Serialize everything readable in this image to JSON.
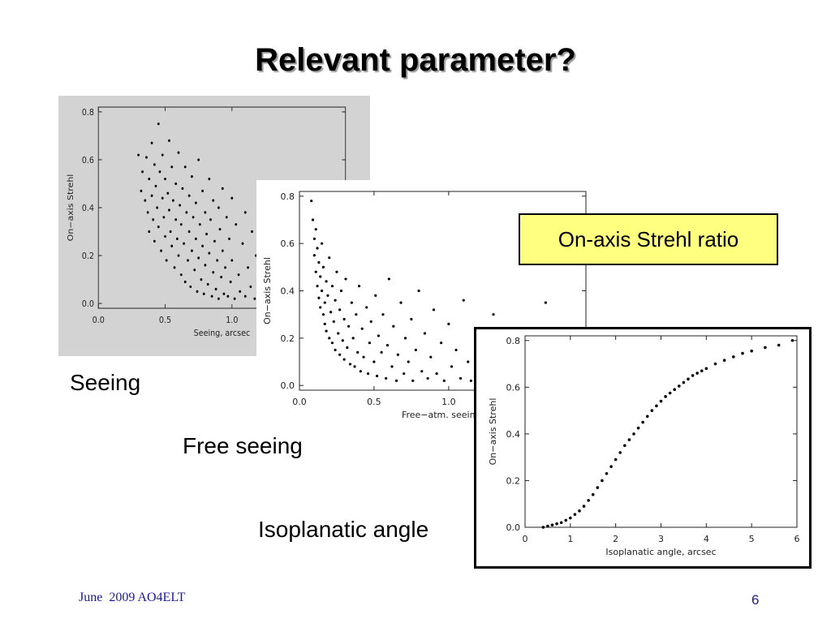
{
  "slide": {
    "title": "Relevant parameter?",
    "footer": "June  2009 AO4ELT",
    "page_number": "6",
    "callout": "On-axis Strehl ratio",
    "captions": {
      "seeing": "Seeing",
      "free_seeing": "Free seeing",
      "isoplanatic": "Isoplanatic angle"
    }
  },
  "chart_data": [
    {
      "id": "seeing",
      "type": "scatter",
      "title": "",
      "xlabel": "Seeing, arcsec",
      "ylabel": "On−axis Strehl",
      "xlim": [
        0.0,
        1.85
      ],
      "ylim": [
        -0.02,
        0.82
      ],
      "xticks": [
        "0.0",
        "0.5",
        "1.0"
      ],
      "xtick_values": [
        0.0,
        0.5,
        1.0
      ],
      "yticks": [
        "0.0",
        "0.2",
        "0.4",
        "0.6",
        "0.8"
      ],
      "ytick_values": [
        0.0,
        0.2,
        0.4,
        0.6,
        0.8
      ],
      "background": "#d3d3d3",
      "points": [
        [
          0.3,
          0.62
        ],
        [
          0.32,
          0.47
        ],
        [
          0.33,
          0.55
        ],
        [
          0.35,
          0.43
        ],
        [
          0.36,
          0.61
        ],
        [
          0.37,
          0.38
        ],
        [
          0.38,
          0.52
        ],
        [
          0.38,
          0.3
        ],
        [
          0.4,
          0.67
        ],
        [
          0.4,
          0.45
        ],
        [
          0.41,
          0.35
        ],
        [
          0.42,
          0.58
        ],
        [
          0.42,
          0.26
        ],
        [
          0.43,
          0.49
        ],
        [
          0.44,
          0.4
        ],
        [
          0.45,
          0.75
        ],
        [
          0.45,
          0.32
        ],
        [
          0.46,
          0.55
        ],
        [
          0.47,
          0.22
        ],
        [
          0.48,
          0.44
        ],
        [
          0.48,
          0.62
        ],
        [
          0.49,
          0.36
        ],
        [
          0.5,
          0.28
        ],
        [
          0.5,
          0.52
        ],
        [
          0.51,
          0.18
        ],
        [
          0.52,
          0.46
        ],
        [
          0.53,
          0.39
        ],
        [
          0.53,
          0.68
        ],
        [
          0.54,
          0.3
        ],
        [
          0.55,
          0.24
        ],
        [
          0.55,
          0.57
        ],
        [
          0.56,
          0.43
        ],
        [
          0.57,
          0.15
        ],
        [
          0.58,
          0.35
        ],
        [
          0.58,
          0.5
        ],
        [
          0.59,
          0.27
        ],
        [
          0.6,
          0.63
        ],
        [
          0.6,
          0.2
        ],
        [
          0.61,
          0.41
        ],
        [
          0.62,
          0.12
        ],
        [
          0.62,
          0.33
        ],
        [
          0.63,
          0.48
        ],
        [
          0.64,
          0.25
        ],
        [
          0.65,
          0.57
        ],
        [
          0.65,
          0.09
        ],
        [
          0.66,
          0.38
        ],
        [
          0.67,
          0.18
        ],
        [
          0.68,
          0.45
        ],
        [
          0.68,
          0.3
        ],
        [
          0.69,
          0.07
        ],
        [
          0.7,
          0.53
        ],
        [
          0.7,
          0.22
        ],
        [
          0.71,
          0.36
        ],
        [
          0.72,
          0.14
        ],
        [
          0.73,
          0.42
        ],
        [
          0.73,
          0.27
        ],
        [
          0.74,
          0.05
        ],
        [
          0.75,
          0.6
        ],
        [
          0.75,
          0.19
        ],
        [
          0.76,
          0.33
        ],
        [
          0.77,
          0.1
        ],
        [
          0.78,
          0.47
        ],
        [
          0.78,
          0.24
        ],
        [
          0.79,
          0.04
        ],
        [
          0.8,
          0.38
        ],
        [
          0.8,
          0.16
        ],
        [
          0.81,
          0.29
        ],
        [
          0.82,
          0.08
        ],
        [
          0.83,
          0.52
        ],
        [
          0.83,
          0.21
        ],
        [
          0.84,
          0.35
        ],
        [
          0.85,
          0.03
        ],
        [
          0.86,
          0.13
        ],
        [
          0.86,
          0.43
        ],
        [
          0.87,
          0.26
        ],
        [
          0.88,
          0.06
        ],
        [
          0.89,
          0.18
        ],
        [
          0.9,
          0.4
        ],
        [
          0.9,
          0.02
        ],
        [
          0.91,
          0.31
        ],
        [
          0.92,
          0.11
        ],
        [
          0.93,
          0.48
        ],
        [
          0.93,
          0.22
        ],
        [
          0.94,
          0.04
        ],
        [
          0.95,
          0.15
        ],
        [
          0.96,
          0.36
        ],
        [
          0.97,
          0.03
        ],
        [
          0.98,
          0.27
        ],
        [
          0.99,
          0.09
        ],
        [
          1.0,
          0.44
        ],
        [
          1.0,
          0.18
        ],
        [
          1.02,
          0.02
        ],
        [
          1.03,
          0.33
        ],
        [
          1.05,
          0.12
        ],
        [
          1.06,
          0.05
        ],
        [
          1.08,
          0.25
        ],
        [
          1.1,
          0.38
        ],
        [
          1.1,
          0.03
        ],
        [
          1.12,
          0.15
        ],
        [
          1.14,
          0.07
        ],
        [
          1.15,
          0.3
        ],
        [
          1.17,
          0.02
        ],
        [
          1.18,
          0.2
        ],
        [
          1.2,
          0.45
        ],
        [
          1.22,
          0.1
        ],
        [
          1.24,
          0.04
        ],
        [
          1.25,
          0.28
        ],
        [
          1.28,
          0.14
        ],
        [
          1.3,
          0.02
        ],
        [
          1.32,
          0.35
        ],
        [
          1.33,
          0.08
        ],
        [
          1.35,
          0.2
        ],
        [
          1.38,
          0.03
        ],
        [
          1.4,
          0.26
        ],
        [
          1.42,
          0.11
        ],
        [
          1.45,
          0.05
        ],
        [
          1.48,
          0.32
        ],
        [
          1.5,
          0.16
        ],
        [
          1.52,
          0.02
        ],
        [
          1.55,
          0.22
        ],
        [
          1.58,
          0.07
        ],
        [
          1.6,
          0.4
        ],
        [
          1.62,
          0.12
        ],
        [
          1.65,
          0.03
        ],
        [
          1.68,
          0.18
        ],
        [
          1.7,
          0.06
        ],
        [
          1.72,
          0.28
        ],
        [
          1.75,
          0.02
        ],
        [
          1.78,
          0.1
        ],
        [
          1.8,
          0.04
        ]
      ]
    },
    {
      "id": "free_seeing",
      "type": "scatter",
      "title": "",
      "xlabel": "Free−atm. seeing,",
      "ylabel": "On−axis Strehl",
      "xlim": [
        0.0,
        1.92
      ],
      "ylim": [
        -0.02,
        0.82
      ],
      "xticks": [
        "0.0",
        "0.5",
        "1.0"
      ],
      "xtick_values": [
        0.0,
        0.5,
        1.0
      ],
      "yticks": [
        "0.0",
        "0.2",
        "0.4",
        "0.6",
        "0.8"
      ],
      "ytick_values": [
        0.0,
        0.2,
        0.4,
        0.6,
        0.8
      ],
      "background": "#ffffff",
      "points": [
        [
          0.08,
          0.78
        ],
        [
          0.09,
          0.7
        ],
        [
          0.1,
          0.62
        ],
        [
          0.1,
          0.55
        ],
        [
          0.11,
          0.66
        ],
        [
          0.11,
          0.48
        ],
        [
          0.12,
          0.58
        ],
        [
          0.12,
          0.42
        ],
        [
          0.13,
          0.52
        ],
        [
          0.13,
          0.37
        ],
        [
          0.14,
          0.46
        ],
        [
          0.14,
          0.33
        ],
        [
          0.15,
          0.6
        ],
        [
          0.15,
          0.4
        ],
        [
          0.16,
          0.3
        ],
        [
          0.16,
          0.5
        ],
        [
          0.17,
          0.35
        ],
        [
          0.17,
          0.26
        ],
        [
          0.18,
          0.44
        ],
        [
          0.18,
          0.23
        ],
        [
          0.19,
          0.38
        ],
        [
          0.2,
          0.2
        ],
        [
          0.2,
          0.54
        ],
        [
          0.21,
          0.31
        ],
        [
          0.22,
          0.18
        ],
        [
          0.22,
          0.42
        ],
        [
          0.23,
          0.27
        ],
        [
          0.24,
          0.15
        ],
        [
          0.24,
          0.36
        ],
        [
          0.25,
          0.48
        ],
        [
          0.26,
          0.22
        ],
        [
          0.27,
          0.13
        ],
        [
          0.27,
          0.32
        ],
        [
          0.28,
          0.4
        ],
        [
          0.29,
          0.19
        ],
        [
          0.3,
          0.11
        ],
        [
          0.3,
          0.28
        ],
        [
          0.31,
          0.45
        ],
        [
          0.32,
          0.16
        ],
        [
          0.33,
          0.25
        ],
        [
          0.34,
          0.09
        ],
        [
          0.35,
          0.35
        ],
        [
          0.36,
          0.2
        ],
        [
          0.37,
          0.08
        ],
        [
          0.38,
          0.3
        ],
        [
          0.39,
          0.14
        ],
        [
          0.4,
          0.42
        ],
        [
          0.41,
          0.06
        ],
        [
          0.42,
          0.24
        ],
        [
          0.43,
          0.12
        ],
        [
          0.45,
          0.33
        ],
        [
          0.46,
          0.05
        ],
        [
          0.47,
          0.18
        ],
        [
          0.48,
          0.27
        ],
        [
          0.5,
          0.1
        ],
        [
          0.51,
          0.38
        ],
        [
          0.52,
          0.04
        ],
        [
          0.53,
          0.21
        ],
        [
          0.55,
          0.14
        ],
        [
          0.56,
          0.3
        ],
        [
          0.58,
          0.03
        ],
        [
          0.59,
          0.17
        ],
        [
          0.6,
          0.45
        ],
        [
          0.62,
          0.08
        ],
        [
          0.63,
          0.25
        ],
        [
          0.65,
          0.02
        ],
        [
          0.66,
          0.13
        ],
        [
          0.68,
          0.35
        ],
        [
          0.7,
          0.05
        ],
        [
          0.71,
          0.2
        ],
        [
          0.73,
          0.1
        ],
        [
          0.75,
          0.28
        ],
        [
          0.76,
          0.02
        ],
        [
          0.78,
          0.15
        ],
        [
          0.8,
          0.4
        ],
        [
          0.82,
          0.06
        ],
        [
          0.84,
          0.22
        ],
        [
          0.86,
          0.03
        ],
        [
          0.88,
          0.12
        ],
        [
          0.9,
          0.32
        ],
        [
          0.92,
          0.05
        ],
        [
          0.95,
          0.18
        ],
        [
          0.97,
          0.02
        ],
        [
          1.0,
          0.26
        ],
        [
          1.02,
          0.08
        ],
        [
          1.05,
          0.15
        ],
        [
          1.08,
          0.03
        ],
        [
          1.1,
          0.36
        ],
        [
          1.13,
          0.1
        ],
        [
          1.15,
          0.02
        ],
        [
          1.18,
          0.2
        ],
        [
          1.2,
          0.05
        ],
        [
          1.24,
          0.13
        ],
        [
          1.28,
          0.02
        ],
        [
          1.3,
          0.3
        ],
        [
          1.33,
          0.07
        ],
        [
          1.37,
          0.15
        ],
        [
          1.4,
          0.03
        ],
        [
          1.45,
          0.22
        ],
        [
          1.5,
          0.05
        ],
        [
          1.55,
          0.12
        ],
        [
          1.6,
          0.03
        ],
        [
          1.65,
          0.35
        ],
        [
          1.7,
          0.08
        ],
        [
          1.75,
          0.2
        ],
        [
          1.8,
          0.04
        ],
        [
          1.85,
          0.14
        ],
        [
          1.88,
          0.02
        ]
      ]
    },
    {
      "id": "isoplanatic",
      "type": "scatter",
      "title": "",
      "xlabel": "Isoplanatic angle, arcsec",
      "ylabel": "On−axis Strehl",
      "xlim": [
        0.0,
        6.0
      ],
      "ylim": [
        0.0,
        0.82
      ],
      "xticks": [
        "0",
        "1",
        "2",
        "3",
        "4",
        "5",
        "6"
      ],
      "xtick_values": [
        0,
        1,
        2,
        3,
        4,
        5,
        6
      ],
      "yticks": [
        "0.0",
        "0.2",
        "0.4",
        "0.6",
        "0.8"
      ],
      "ytick_values": [
        0.0,
        0.2,
        0.4,
        0.6,
        0.8
      ],
      "background": "#ffffff",
      "points": [
        [
          0.4,
          0.0
        ],
        [
          0.5,
          0.005
        ],
        [
          0.6,
          0.01
        ],
        [
          0.7,
          0.015
        ],
        [
          0.8,
          0.02
        ],
        [
          0.9,
          0.03
        ],
        [
          1.0,
          0.04
        ],
        [
          1.1,
          0.055
        ],
        [
          1.2,
          0.07
        ],
        [
          1.3,
          0.09
        ],
        [
          1.4,
          0.115
        ],
        [
          1.5,
          0.14
        ],
        [
          1.6,
          0.17
        ],
        [
          1.7,
          0.2
        ],
        [
          1.8,
          0.23
        ],
        [
          1.9,
          0.26
        ],
        [
          2.0,
          0.29
        ],
        [
          2.1,
          0.32
        ],
        [
          2.2,
          0.35
        ],
        [
          2.3,
          0.375
        ],
        [
          2.4,
          0.4
        ],
        [
          2.5,
          0.425
        ],
        [
          2.6,
          0.45
        ],
        [
          2.7,
          0.475
        ],
        [
          2.8,
          0.5
        ],
        [
          2.9,
          0.52
        ],
        [
          3.0,
          0.54
        ],
        [
          3.1,
          0.56
        ],
        [
          3.2,
          0.575
        ],
        [
          3.3,
          0.59
        ],
        [
          3.4,
          0.605
        ],
        [
          3.5,
          0.62
        ],
        [
          3.6,
          0.635
        ],
        [
          3.7,
          0.65
        ],
        [
          3.8,
          0.66
        ],
        [
          3.9,
          0.67
        ],
        [
          4.0,
          0.68
        ],
        [
          4.2,
          0.7
        ],
        [
          4.4,
          0.715
        ],
        [
          4.6,
          0.73
        ],
        [
          4.8,
          0.745
        ],
        [
          5.0,
          0.755
        ],
        [
          5.3,
          0.77
        ],
        [
          5.6,
          0.78
        ],
        [
          5.9,
          0.8
        ]
      ]
    }
  ]
}
